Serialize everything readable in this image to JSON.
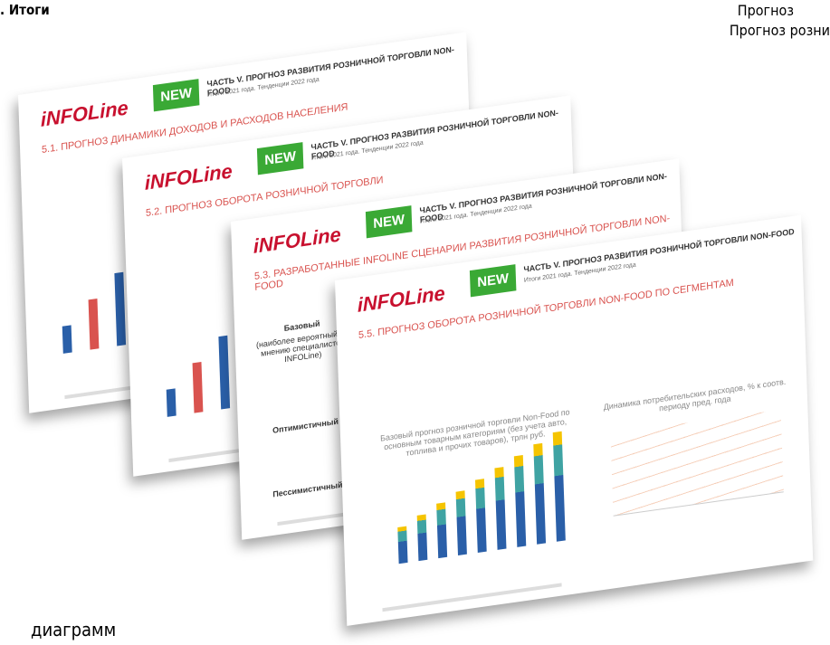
{
  "header": {
    "left": ". Итоги",
    "right": [
      "Прогноз",
      "Прогноз розни"
    ]
  },
  "footer": {
    "caption": "диаграмм"
  },
  "slides": [
    {
      "logo": "iNFOLine",
      "badge": "NEW",
      "part": "ЧАСТЬ V. ПРОГНОЗ РАЗВИТИЯ РОЗНИЧНОЙ ТОРГОВЛИ NON-FOOD",
      "subtitle": "Итоги 2021 года. Тенденции 2022 года",
      "section": "5.1. ПРОГНОЗ ДИНАМИКИ ДОХОДОВ И РАСХОДОВ НАСЕЛЕНИЯ"
    },
    {
      "logo": "iNFOLine",
      "badge": "NEW",
      "part": "ЧАСТЬ V. ПРОГНОЗ РАЗВИТИЯ РОЗНИЧНОЙ ТОРГОВЛИ NON-FOOD",
      "subtitle": "Итоги 2021 года. Тенденции 2022 года",
      "section": "5.2. ПРОГНОЗ ОБОРОТА РОЗНИЧНОЙ ТОРГОВЛИ"
    },
    {
      "logo": "iNFOLine",
      "badge": "NEW",
      "part": "ЧАСТЬ V. ПРОГНОЗ РАЗВИТИЯ РОЗНИЧНОЙ ТОРГОВЛИ NON-FOOD",
      "subtitle": "Итоги 2021 года. Тенденции 2022 года",
      "section": "5.3. РАЗРАБОТАННЫЕ INFOLINE СЦЕНАРИИ РАЗВИТИЯ РОЗНИЧНОЙ ТОРГОВЛИ NON-FOOD",
      "scenarios": [
        "Базовый",
        "(наиболее вероятный по мнению специалистов INFOLine)",
        "Оптимистичный",
        "Пессимистичный"
      ]
    },
    {
      "logo": "iNFOLine",
      "badge": "NEW",
      "part": "ЧАСТЬ V. ПРОГНОЗ РАЗВИТИЯ РОЗНИЧНОЙ ТОРГОВЛИ NON-FOOD",
      "subtitle": "Итоги 2021 года. Тенденции 2022 года",
      "section": "5.5. ПРОГНОЗ ОБОРОТА РОЗНИЧНОЙ ТОРГОВЛИ NON-FOOD ПО СЕГМЕНТАМ",
      "chart_left": "Базовый прогноз розничной торговли Non-Food по основным товарным категориям (без учета авто, топлива и прочих товаров), трлн руб.",
      "chart_right": "Динамика потребительских расходов, % к соотв. периоду пред. года"
    }
  ]
}
